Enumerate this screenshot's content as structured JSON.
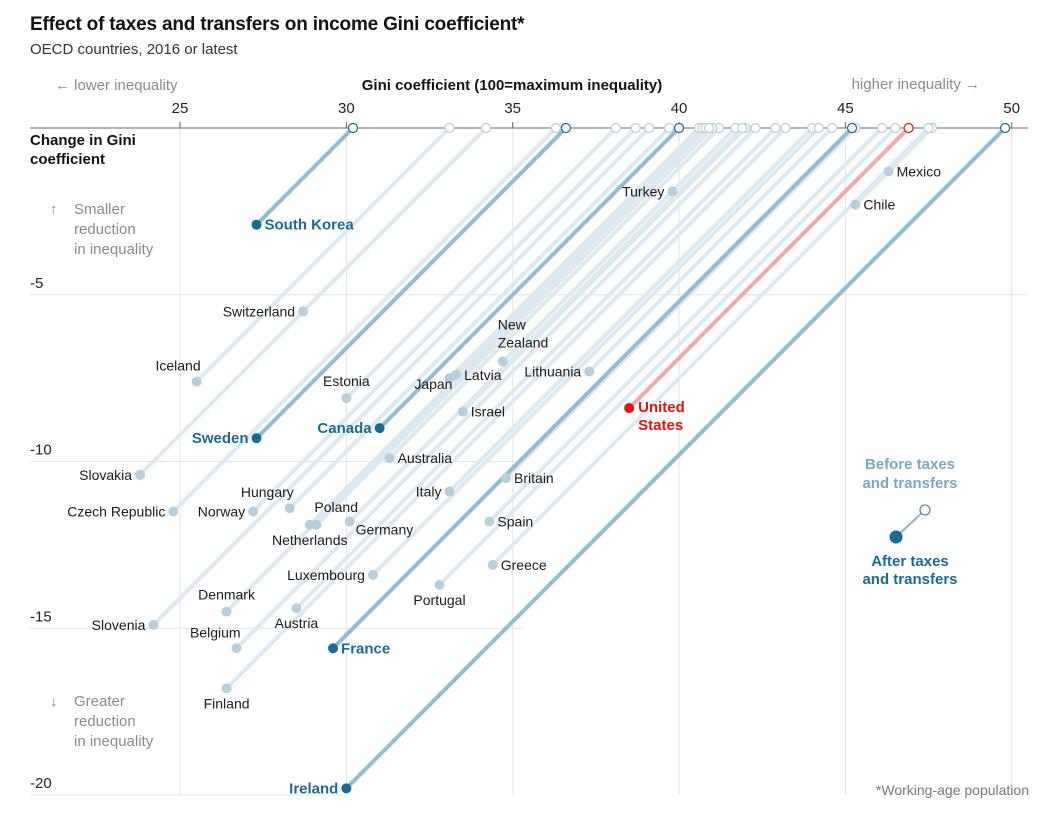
{
  "title": "Effect of taxes and transfers on income Gini coefficient*",
  "subtitle": "OECD countries, 2016 or latest",
  "chart_data": {
    "type": "scatter",
    "title": "Effect of taxes and transfers on income Gini coefficient*",
    "subtitle": "OECD countries, 2016 or latest",
    "xlabel": "Gini coefficient (100=maximum inequality)",
    "ylabel": "Change in Gini coefficient",
    "x_direction_left": "← lower inequality",
    "x_direction_right": "higher inequality →",
    "y_direction_up": [
      "Smaller",
      "reduction",
      "in inequality"
    ],
    "y_direction_down": [
      "Greater",
      "reduction",
      "in inequality"
    ],
    "xlim": [
      21.5,
      50.5
    ],
    "ylim": [
      -20,
      0
    ],
    "x_ticks": [
      25,
      30,
      35,
      40,
      45,
      50
    ],
    "y_ticks": [
      -5,
      -10,
      -15,
      -20
    ],
    "grid": true,
    "legend": {
      "position": "right",
      "before_label": [
        "Before taxes",
        "and transfers"
      ],
      "after_label": [
        "After taxes",
        "and transfers"
      ]
    },
    "footnote": "*Working-age population",
    "colors": {
      "highlight": "#1a6a94",
      "highlight_line": "#8fbdd3",
      "normal_dot": "#b7cedb",
      "normal_line": "#dce9f0",
      "us": "#e3120b",
      "us_line": "#f4a9aa",
      "axis": "#666666",
      "grid": "#e4e4e4"
    },
    "series": [
      {
        "country": "South Korea",
        "before": 30.2,
        "after": 27.3,
        "change": -2.9,
        "style": "highlight",
        "label_side": "right"
      },
      {
        "country": "Turkey",
        "before": 41.7,
        "after": 39.8,
        "change": -1.9,
        "style": "normal",
        "label_side": "left"
      },
      {
        "country": "Mexico",
        "before": 47.6,
        "after": 46.3,
        "change": -1.3,
        "style": "normal",
        "label_side": "right"
      },
      {
        "country": "Chile",
        "before": 47.6,
        "after": 45.3,
        "change": -2.3,
        "style": "normal",
        "label_side": "right"
      },
      {
        "country": "Switzerland",
        "before": 34.2,
        "after": 28.7,
        "change": -5.5,
        "style": "normal",
        "label_side": "left"
      },
      {
        "country": "Iceland",
        "before": 33.1,
        "after": 25.5,
        "change": -7.6,
        "style": "normal",
        "label_side": "above-left"
      },
      {
        "country": "Sweden",
        "before": 36.6,
        "after": 27.3,
        "change": -9.3,
        "style": "highlight",
        "label_side": "left"
      },
      {
        "country": "Estonia",
        "before": 38.1,
        "after": 30.0,
        "change": -8.1,
        "style": "normal",
        "label_side": "above"
      },
      {
        "country": "Canada",
        "before": 40.0,
        "after": 31.0,
        "change": -9.0,
        "style": "highlight",
        "label_side": "left"
      },
      {
        "country": "Japan",
        "before": 40.6,
        "after": 33.1,
        "change": -7.5,
        "style": "normal",
        "label_side": "below-left"
      },
      {
        "country": "Latvia",
        "before": 40.7,
        "after": 33.3,
        "change": -7.4,
        "style": "normal",
        "label_side": "right"
      },
      {
        "country": "New Zealand",
        "before": 41.7,
        "after": 34.7,
        "change": -7.0,
        "style": "normal",
        "label_side": "above"
      },
      {
        "country": "Lithuania",
        "before": 44.6,
        "after": 37.3,
        "change": -7.3,
        "style": "normal",
        "label_side": "left"
      },
      {
        "country": "Israel",
        "before": 42.0,
        "after": 33.5,
        "change": -8.5,
        "style": "normal",
        "label_side": "right"
      },
      {
        "country": "United States",
        "before": 46.9,
        "after": 38.5,
        "change": -8.4,
        "style": "us",
        "label_side": "right"
      },
      {
        "country": "Australia",
        "before": 41.2,
        "after": 31.3,
        "change": -9.9,
        "style": "normal",
        "label_side": "right"
      },
      {
        "country": "Slovakia",
        "before": 34.2,
        "after": 23.8,
        "change": -10.4,
        "style": "normal",
        "label_side": "left"
      },
      {
        "country": "Britain",
        "before": 45.3,
        "after": 34.8,
        "change": -10.5,
        "style": "normal",
        "label_side": "right"
      },
      {
        "country": "Czech Republic",
        "before": 36.3,
        "after": 24.8,
        "change": -11.5,
        "style": "normal",
        "label_side": "left"
      },
      {
        "country": "Norway",
        "before": 38.7,
        "after": 27.2,
        "change": -11.5,
        "style": "normal",
        "label_side": "left"
      },
      {
        "country": "Hungary",
        "before": 39.7,
        "after": 28.3,
        "change": -11.4,
        "style": "normal",
        "label_side": "above-left"
      },
      {
        "country": "Italy",
        "before": 44.0,
        "after": 33.1,
        "change": -10.9,
        "style": "normal",
        "label_side": "left"
      },
      {
        "country": "Netherlands",
        "before": 40.8,
        "after": 28.9,
        "change": -11.9,
        "style": "normal",
        "label_side": "below"
      },
      {
        "country": "Poland",
        "before": 41.0,
        "after": 29.1,
        "change": -11.9,
        "style": "normal",
        "label_side": "above-right"
      },
      {
        "country": "Germany",
        "before": 41.9,
        "after": 30.1,
        "change": -11.8,
        "style": "normal",
        "label_side": "below-right"
      },
      {
        "country": "Spain",
        "before": 46.1,
        "after": 34.3,
        "change": -11.8,
        "style": "normal",
        "label_side": "right"
      },
      {
        "country": "Greece",
        "before": 47.5,
        "after": 34.4,
        "change": -13.1,
        "style": "normal",
        "label_side": "right"
      },
      {
        "country": "Luxembourg",
        "before": 44.2,
        "after": 30.8,
        "change": -13.4,
        "style": "normal",
        "label_side": "left"
      },
      {
        "country": "Portugal",
        "before": 46.5,
        "after": 32.8,
        "change": -13.7,
        "style": "normal",
        "label_side": "below"
      },
      {
        "country": "Denmark",
        "before": 40.9,
        "after": 26.4,
        "change": -14.5,
        "style": "normal",
        "label_side": "above"
      },
      {
        "country": "Austria",
        "before": 42.9,
        "after": 28.5,
        "change": -14.4,
        "style": "normal",
        "label_side": "below"
      },
      {
        "country": "Slovenia",
        "before": 39.1,
        "after": 24.2,
        "change": -14.9,
        "style": "normal",
        "label_side": "left"
      },
      {
        "country": "France",
        "before": 45.2,
        "after": 29.6,
        "change": -15.6,
        "style": "highlight",
        "label_side": "right"
      },
      {
        "country": "Belgium",
        "before": 42.3,
        "after": 26.7,
        "change": -15.6,
        "style": "normal",
        "label_side": "above-left"
      },
      {
        "country": "Finland",
        "before": 43.2,
        "after": 26.4,
        "change": -16.8,
        "style": "normal",
        "label_side": "below"
      },
      {
        "country": "Ireland",
        "before": 49.8,
        "after": 30.0,
        "change": -19.8,
        "style": "highlight",
        "label_side": "left"
      }
    ]
  }
}
